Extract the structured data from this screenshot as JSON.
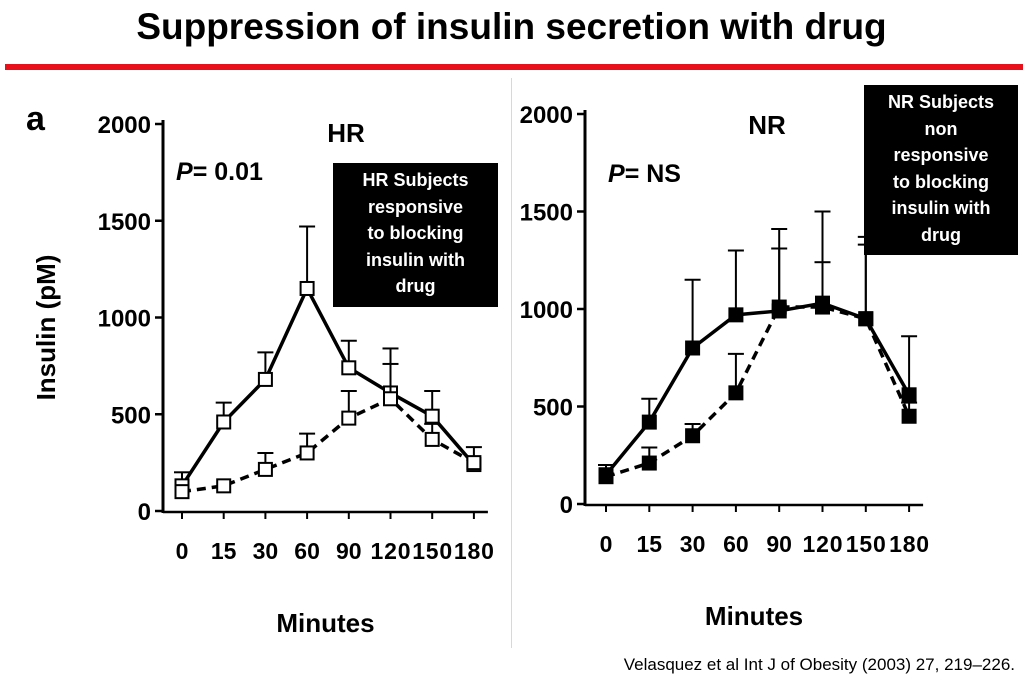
{
  "slide": {
    "title": "Suppression of insulin secretion with drug",
    "rule_color": "#e8101a",
    "citation": "Velasquez et al Int J of Obesity (2003) 27, 219–226."
  },
  "callouts": {
    "hr": [
      "HR Subjects",
      "responsive",
      "to blocking",
      "insulin with",
      "drug"
    ],
    "nr": [
      "NR Subjects",
      "non",
      "responsive",
      "to blocking",
      "insulin with",
      "drug"
    ]
  },
  "chart_data": [
    {
      "type": "line",
      "panel_letter": "a",
      "title": "HR",
      "p_label": "P",
      "p_value": "= 0.01",
      "xlabel": "Minutes",
      "ylabel": "Insulin (pM)",
      "categories": [
        "0",
        "15",
        "30",
        "60",
        "90",
        "120",
        "150",
        "180"
      ],
      "yticks": [
        0,
        500,
        1000,
        1500,
        2000
      ],
      "ylim": [
        0,
        2000
      ],
      "marker": "open-square",
      "series": [
        {
          "line": "solid",
          "values": [
            130,
            460,
            680,
            1150,
            740,
            610,
            490,
            240
          ],
          "errors": [
            70,
            100,
            140,
            320,
            140,
            150,
            130,
            90
          ]
        },
        {
          "line": "dashed",
          "values": [
            100,
            130,
            215,
            300,
            480,
            580,
            370,
            250
          ],
          "errors": [
            0,
            0,
            85,
            100,
            140,
            260,
            80,
            0
          ]
        }
      ]
    },
    {
      "type": "line",
      "panel_letter": "",
      "title": "NR",
      "p_label": "P",
      "p_value": "= NS",
      "xlabel": "Minutes",
      "ylabel": "",
      "categories": [
        "0",
        "15",
        "30",
        "60",
        "90",
        "120",
        "150",
        "180"
      ],
      "yticks": [
        0,
        500,
        1000,
        1500,
        2000
      ],
      "ylim": [
        0,
        2000
      ],
      "marker": "filled-square",
      "series": [
        {
          "line": "solid",
          "values": [
            150,
            420,
            800,
            970,
            990,
            1030,
            950,
            560
          ],
          "errors": [
            50,
            120,
            350,
            330,
            420,
            470,
            380,
            300
          ]
        },
        {
          "line": "dashed",
          "values": [
            140,
            210,
            350,
            570,
            1010,
            1010,
            950,
            450
          ],
          "errors": [
            0,
            80,
            60,
            200,
            300,
            230,
            420,
            70
          ]
        }
      ]
    }
  ]
}
